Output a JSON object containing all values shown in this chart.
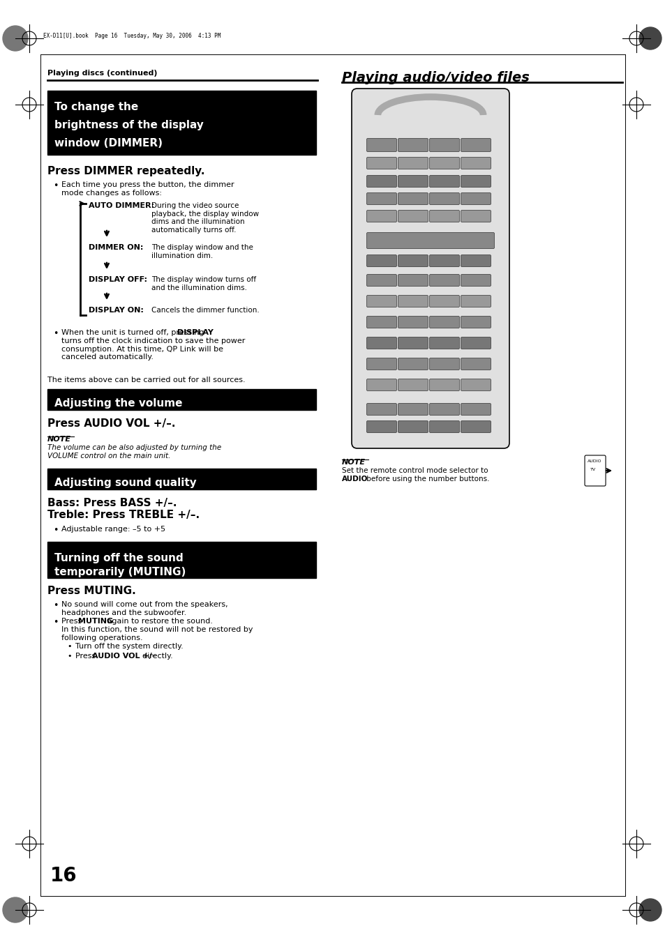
{
  "bg": "#ffffff",
  "pw": 9.54,
  "ph": 13.51,
  "stamp": "EX-D11[U].book  Page 16  Tuesday, May 30, 2006  4:13 PM",
  "lhdr": "Playing discs (continued)",
  "rhdr": "Playing audio/video files",
  "box1": [
    "To change the",
    "brightness of the display",
    "window (DIMMER)"
  ],
  "press_dim": "Press DIMMER repeatedly.",
  "dim_b": "Each time you press the button, the dimmer\nmode changes as follows:",
  "ad_lbl": "AUTO DIMMER:",
  "ad_txt": "During the video source\nplayback, the display window\ndims and the illumination\nautomatically turns off.",
  "don_lbl": "DIMMER ON:",
  "don_txt": "The display window and the\nillumination dim.",
  "doff_lbl": "DISPLAY OFF:",
  "doff_txt": "The display window turns off\nand the illumination dims.",
  "don2_lbl": "DISPLAY ON:",
  "don2_txt": "Cancels the dimmer function.",
  "when_off": "When the unit is turned off, pressing ",
  "when_off_bold": "DISPLAY",
  "when_off2": "turns off the clock indication to save the power\nconsumption. At this time, QP Link will be\ncanceled automatically.",
  "items": "The items above can be carried out for all sources.",
  "box2": "Adjusting the volume",
  "press_vol": "Press AUDIO VOL +/–.",
  "n1_lbl": "NOTE",
  "n1_txt": "The volume can be also adjusted by turning the\nVOLUME control on the main unit.",
  "box3": "Adjusting sound quality",
  "bt1": "Bass: Press BASS +/–.",
  "bt2": "Treble: Press TREBLE +/–.",
  "adj_r": "Adjustable range: –5 to +5",
  "box4": [
    "Turning off the sound",
    "temporarily (MUTING)"
  ],
  "press_mut": "Press MUTING.",
  "mb1": "No sound will come out from the speakers,\nheadphones and the subwoofer.",
  "mb2a": "Press ",
  "mb2b": "MUTING",
  "mb2c": " again to restore the sound.",
  "mb2d": "In this function, the sound will not be restored by\nfollowing operations.",
  "ms1": "Turn off the system directly.",
  "ms2a": "Press ",
  "ms2b": "AUDIO VOL +/–",
  "ms2c": "  directly.",
  "n2_lbl": "NOTE",
  "n2_t1": "Set the remote control mode selector to",
  "n2_bold": "AUDIO",
  "n2_t2": " before using the number buttons.",
  "pgnum": "16"
}
